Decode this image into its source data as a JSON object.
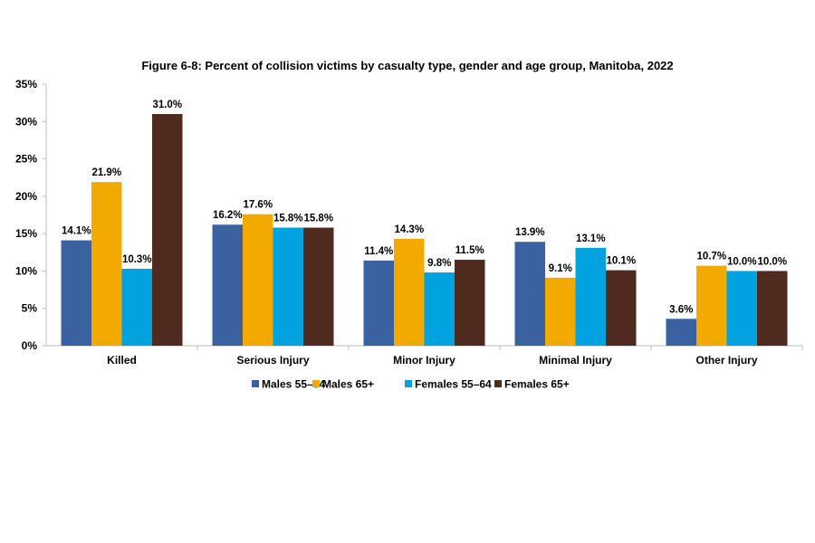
{
  "chart_data": {
    "type": "bar",
    "title": "Figure 6-8: Percent of collision victims by casualty type, gender and age group, Manitoba, 2022",
    "xlabel": "",
    "ylabel": "",
    "categories": [
      "Killed",
      "Serious Injury",
      "Minor Injury",
      "Minimal Injury",
      "Other Injury"
    ],
    "series": [
      {
        "name": "Males 55–64",
        "color": "#3A62A0",
        "values": [
          14.1,
          16.2,
          11.4,
          13.9,
          3.6
        ],
        "labels": [
          "14.1%",
          "16.2%",
          "11.4%",
          "13.9%",
          "3.6%"
        ]
      },
      {
        "name": "Males 65+",
        "color": "#F2A900",
        "values": [
          21.9,
          17.6,
          14.3,
          9.1,
          10.7
        ],
        "labels": [
          "21.9%",
          "17.6%",
          "14.3%",
          "9.1%",
          "10.7%"
        ]
      },
      {
        "name": "Females 55–64",
        "color": "#00A3E0",
        "values": [
          10.3,
          15.8,
          9.8,
          13.1,
          10.0
        ],
        "labels": [
          "10.3%",
          "15.8%",
          "9.8%",
          "13.1%",
          "10.0%"
        ]
      },
      {
        "name": "Females 65+",
        "color": "#4E2A1F",
        "values": [
          31.0,
          15.8,
          11.5,
          10.1,
          10.0
        ],
        "labels": [
          "31.0%",
          "15.8%",
          "11.5%",
          "10.1%",
          "10.0%"
        ]
      }
    ],
    "ylim": [
      0,
      35
    ],
    "yticks": [
      "0%",
      "5%",
      "10%",
      "15%",
      "20%",
      "25%",
      "30%",
      "35%"
    ],
    "grid": false,
    "legend": "bottom"
  }
}
